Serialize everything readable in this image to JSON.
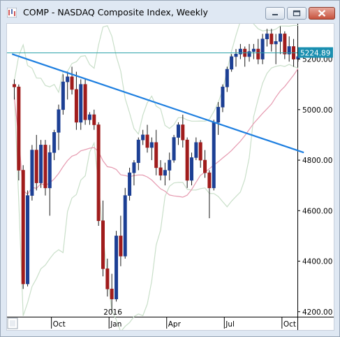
{
  "window": {
    "title": "COMP - NASDAQ Composite Index, Weekly",
    "buttons": [
      "minimize",
      "maximize",
      "close"
    ]
  },
  "chart_data": {
    "type": "candlestick",
    "instrument": "COMP",
    "interval": "Weekly",
    "ylim": [
      4180,
      5340
    ],
    "y_ticks": [
      "4200.00",
      "4400.00",
      "4600.00",
      "4800.00",
      "5000.00",
      "5200.00"
    ],
    "x_labels": [
      {
        "label": "Oct",
        "bar": 9
      },
      {
        "label": "Jan",
        "bar": 22
      },
      {
        "label": "2016",
        "bar": 22,
        "row": 2
      },
      {
        "label": "Apr",
        "bar": 35
      },
      {
        "label": "Jul",
        "bar": 48
      },
      {
        "label": "Oct",
        "bar": 61
      }
    ],
    "last_price": "5224.89",
    "last_price_value": 5224.89,
    "colors": {
      "up": "#1c3f94",
      "down": "#a01c1c",
      "trendline": "#1e7fe0",
      "price_line": "#2aa0a8",
      "ma_slow": "#e69ab0",
      "band": "#c9dfc9",
      "price_tag": "#1a8fb0"
    },
    "candles": [
      [
        5100,
        5120,
        5040,
        5090
      ],
      [
        5090,
        5100,
        4720,
        4760
      ],
      [
        4760,
        4780,
        4290,
        4310
      ],
      [
        4310,
        4680,
        4300,
        4660
      ],
      [
        4660,
        4860,
        4640,
        4840
      ],
      [
        4840,
        4900,
        4680,
        4710
      ],
      [
        4710,
        4880,
        4690,
        4860
      ],
      [
        4860,
        4880,
        4660,
        4690
      ],
      [
        4690,
        4860,
        4580,
        4830
      ],
      [
        4830,
        4920,
        4800,
        4910
      ],
      [
        4910,
        5020,
        4840,
        5000
      ],
      [
        5000,
        5140,
        4980,
        5110
      ],
      [
        5110,
        5150,
        5040,
        5130
      ],
      [
        5130,
        5170,
        5060,
        5080
      ],
      [
        5080,
        5150,
        4920,
        4950
      ],
      [
        4950,
        5120,
        4920,
        5100
      ],
      [
        5100,
        5120,
        4940,
        4960
      ],
      [
        4960,
        4990,
        4940,
        4980
      ],
      [
        4980,
        5000,
        4920,
        4940
      ],
      [
        4940,
        4950,
        4540,
        4560
      ],
      [
        4560,
        4640,
        4340,
        4370
      ],
      [
        4370,
        4410,
        4260,
        4290
      ],
      [
        4290,
        4350,
        4200,
        4250
      ],
      [
        4250,
        4520,
        4240,
        4500
      ],
      [
        4500,
        4580,
        4380,
        4420
      ],
      [
        4420,
        4690,
        4410,
        4660
      ],
      [
        4660,
        4770,
        4640,
        4750
      ],
      [
        4750,
        4800,
        4700,
        4790
      ],
      [
        4790,
        4890,
        4760,
        4880
      ],
      [
        4880,
        4920,
        4860,
        4900
      ],
      [
        4900,
        4940,
        4830,
        4850
      ],
      [
        4850,
        4890,
        4800,
        4870
      ],
      [
        4870,
        4920,
        4740,
        4770
      ],
      [
        4770,
        4800,
        4720,
        4740
      ],
      [
        4740,
        4790,
        4700,
        4760
      ],
      [
        4760,
        4830,
        4720,
        4800
      ],
      [
        4800,
        4900,
        4790,
        4890
      ],
      [
        4890,
        4950,
        4860,
        4940
      ],
      [
        4940,
        4980,
        4850,
        4880
      ],
      [
        4880,
        4890,
        4690,
        4720
      ],
      [
        4720,
        4830,
        4700,
        4810
      ],
      [
        4810,
        4890,
        4800,
        4870
      ],
      [
        4870,
        4880,
        4770,
        4800
      ],
      [
        4800,
        4840,
        4730,
        4750
      ],
      [
        4750,
        4760,
        4570,
        4690
      ],
      [
        4690,
        4960,
        4680,
        4950
      ],
      [
        4950,
        5030,
        4900,
        5010
      ],
      [
        5010,
        5100,
        4990,
        5090
      ],
      [
        5090,
        5170,
        5070,
        5160
      ],
      [
        5160,
        5220,
        5150,
        5210
      ],
      [
        5210,
        5240,
        5170,
        5220
      ],
      [
        5220,
        5260,
        5200,
        5240
      ],
      [
        5240,
        5250,
        5170,
        5210
      ],
      [
        5210,
        5260,
        5190,
        5230
      ],
      [
        5230,
        5260,
        5200,
        5240
      ],
      [
        5240,
        5280,
        5180,
        5200
      ],
      [
        5200,
        5300,
        5180,
        5280
      ],
      [
        5280,
        5320,
        5250,
        5300
      ],
      [
        5300,
        5320,
        5230,
        5260
      ],
      [
        5260,
        5300,
        5180,
        5270
      ],
      [
        5270,
        5330,
        5220,
        5300
      ],
      [
        5300,
        5310,
        5200,
        5220
      ],
      [
        5220,
        5290,
        5190,
        5250
      ],
      [
        5250,
        5280,
        5170,
        5200
      ],
      [
        5200,
        5220,
        5190,
        5210
      ]
    ],
    "trendlines": [
      {
        "name": "descending",
        "from": {
          "bar": -0.5,
          "value": 5220
        },
        "to": {
          "bar": 65.3,
          "value": 4830
        }
      }
    ]
  }
}
